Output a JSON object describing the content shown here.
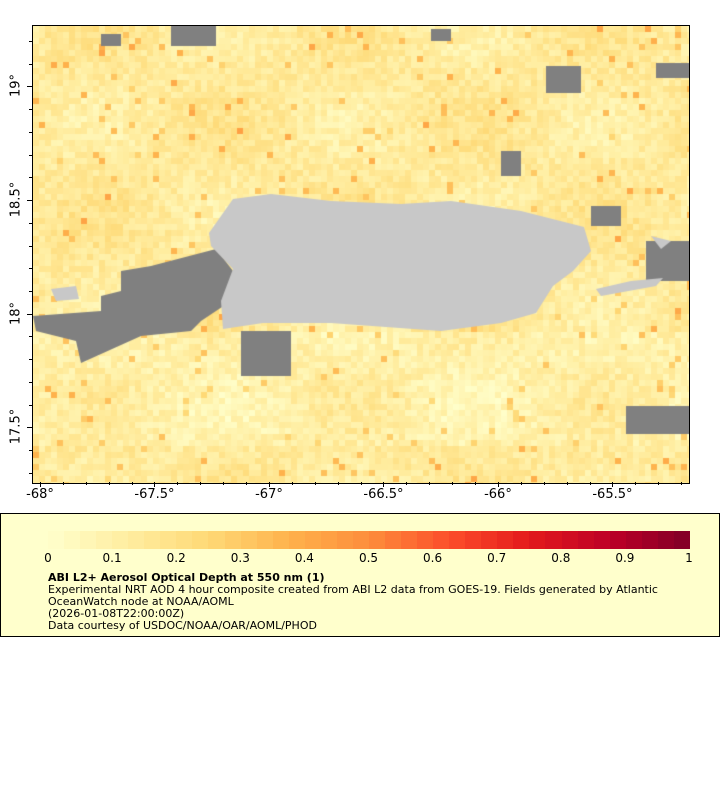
{
  "map": {
    "lon_range": [
      -68.035,
      -65.17
    ],
    "lat_range": [
      17.26,
      19.27
    ],
    "x_ticks": [
      "-68°",
      "-67.5°",
      "-67°",
      "-66.5°",
      "-66°",
      "-65.5°"
    ],
    "x_tick_values": [
      -68,
      -67.5,
      -67,
      -66.5,
      -66,
      -65.5
    ],
    "y_ticks": [
      "19°",
      "18.5°",
      "18°",
      "17.5°"
    ],
    "y_tick_values": [
      19,
      18.5,
      18,
      17.5
    ],
    "colors": {
      "land": "#c8c8c8",
      "no_data": "#808080"
    }
  },
  "legend": {
    "colorbar_labels": [
      "0",
      "0.1",
      "0.2",
      "0.3",
      "0.4",
      "0.5",
      "0.6",
      "0.7",
      "0.8",
      "0.9",
      "1"
    ],
    "colorbar_range": [
      0,
      1
    ],
    "colormap": [
      "#ffffcc",
      "#ffeda0",
      "#fed976",
      "#feb24c",
      "#fd8d3c",
      "#fc4e2a",
      "#e31a1c",
      "#bd0026",
      "#800026"
    ],
    "title": "ABI L2+ Aerosol Optical Depth at 550 nm (1)",
    "line1": "Experimental NRT AOD 4 hour composite created from ABI L2 data from GOES-19. Fields generated by Atlantic",
    "line2": "OceanWatch node at NOAA/AOML",
    "line3": "(2026-01-08T22:00:00Z)",
    "line4": "Data courtesy of USDOC/NOAA/OAR/AOML/PHOD"
  }
}
